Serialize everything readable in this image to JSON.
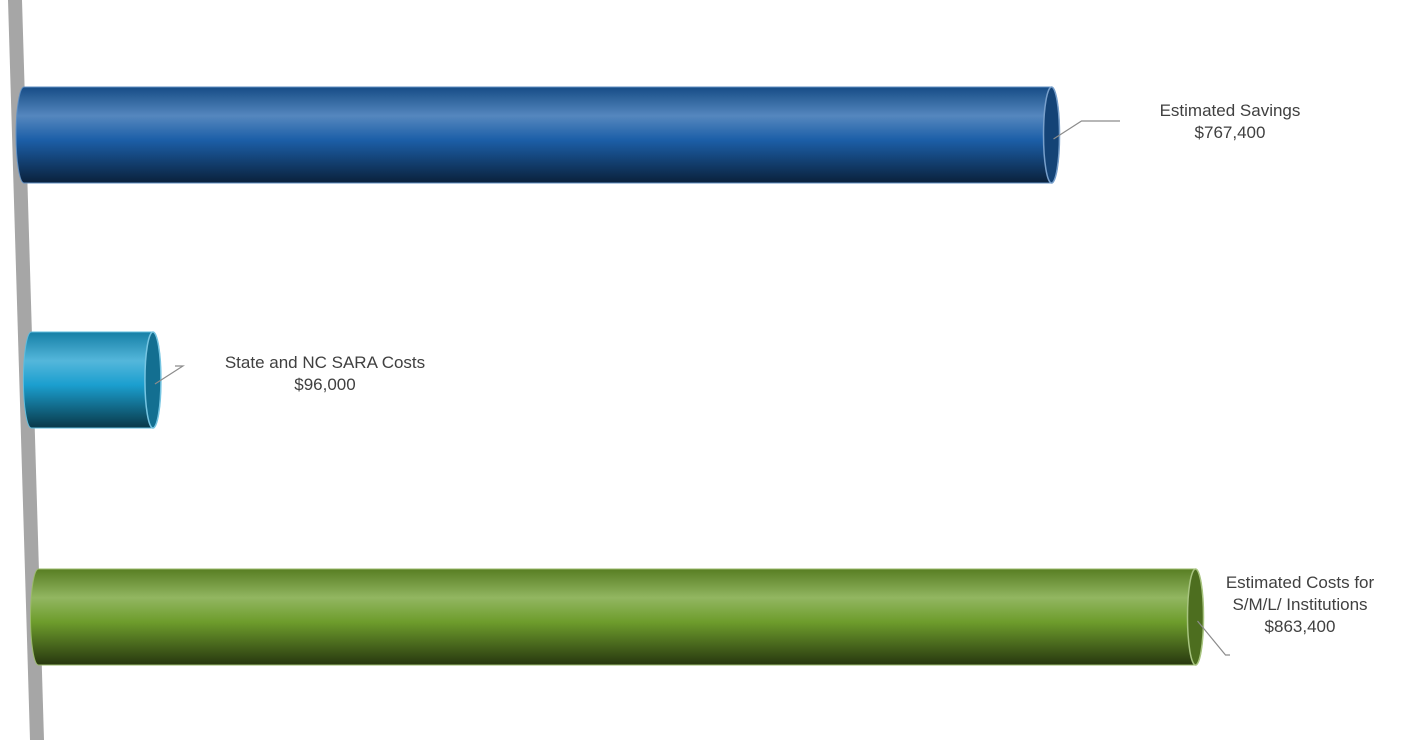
{
  "chart_data": {
    "type": "bar",
    "orientation": "horizontal",
    "categories": [
      "Estimated Savings",
      "State and NC SARA Costs",
      "Estimated Costs for S/M/L/ Institutions"
    ],
    "values": [
      767400,
      96000,
      863400
    ],
    "value_labels": [
      "$767,400",
      "$96,000",
      "$863,400"
    ],
    "colors": [
      "#1c5fa8",
      "#1b9fcf",
      "#6e9d2c"
    ]
  }
}
